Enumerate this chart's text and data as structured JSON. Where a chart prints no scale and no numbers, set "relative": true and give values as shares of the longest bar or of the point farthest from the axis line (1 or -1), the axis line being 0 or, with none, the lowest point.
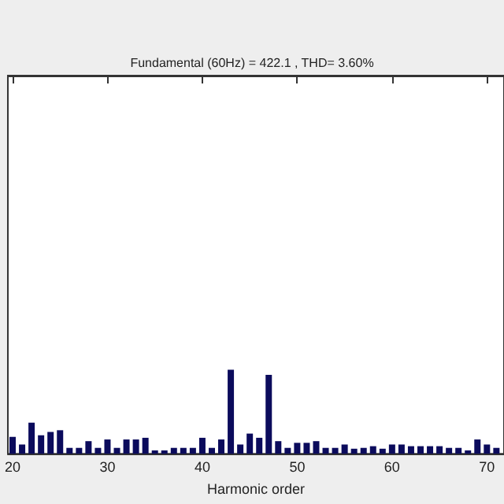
{
  "chart_data": {
    "type": "bar",
    "title": "Fundamental (60Hz) = 422.1 , THD= 3.60%",
    "xlabel": "Harmonic order",
    "relative": true,
    "color": "#0b0b5c",
    "x": [
      20,
      21,
      22,
      23,
      24,
      25,
      26,
      27,
      28,
      29,
      30,
      31,
      32,
      33,
      34,
      35,
      36,
      37,
      38,
      39,
      40,
      41,
      42,
      43,
      44,
      45,
      46,
      47,
      48,
      49,
      50,
      51,
      52,
      53,
      54,
      55,
      56,
      57,
      58,
      59,
      60,
      61,
      62,
      63,
      64,
      65,
      66,
      67,
      68,
      69,
      70,
      71
    ],
    "values": [
      0.2,
      0.11,
      0.37,
      0.22,
      0.26,
      0.28,
      0.07,
      0.07,
      0.15,
      0.07,
      0.17,
      0.07,
      0.17,
      0.17,
      0.19,
      0.04,
      0.04,
      0.07,
      0.07,
      0.07,
      0.19,
      0.07,
      0.17,
      1,
      0.11,
      0.24,
      0.19,
      0.94,
      0.15,
      0.07,
      0.13,
      0.13,
      0.15,
      0.07,
      0.07,
      0.11,
      0.06,
      0.07,
      0.09,
      0.06,
      0.11,
      0.11,
      0.09,
      0.09,
      0.09,
      0.09,
      0.07,
      0.07,
      0.04,
      0.17,
      0.11,
      0.07
    ],
    "xlim": [
      19.5,
      71.8
    ],
    "xticks": [
      20,
      30,
      40,
      50,
      60,
      70
    ],
    "grid": false
  }
}
